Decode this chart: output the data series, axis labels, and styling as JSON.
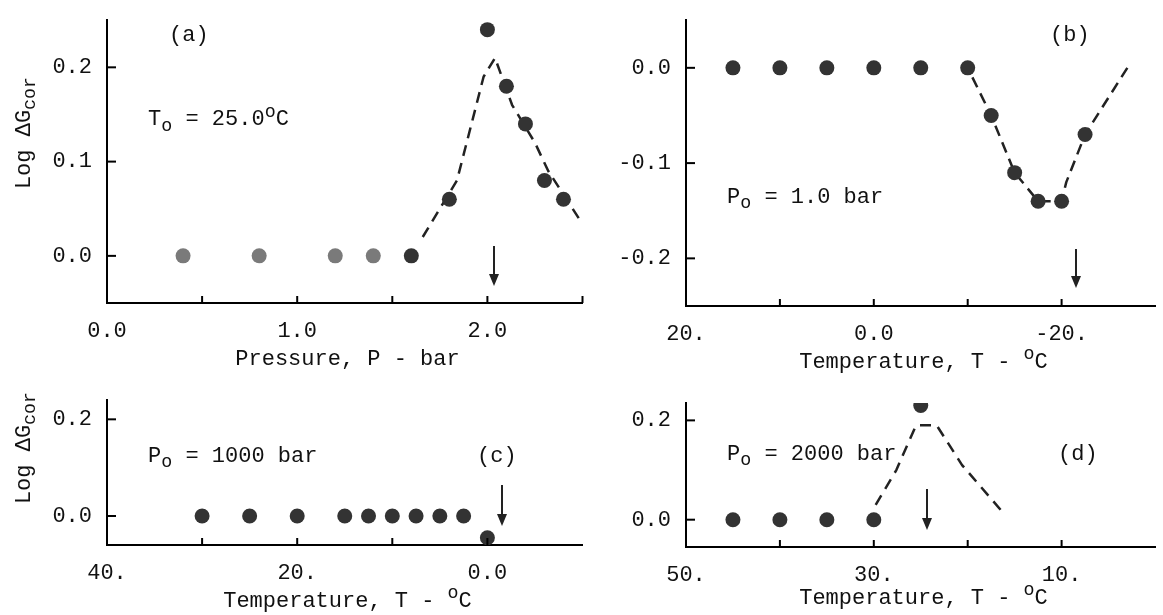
{
  "chart_data": [
    {
      "type": "scatter",
      "xlabel": "Pressure, P - bar",
      "ylabel": "Log ΔG$_{cor}$",
      "xlim": [
        0,
        2.5
      ],
      "xticks": [
        {
          "value": 0,
          "label": "0.0"
        },
        {
          "value": 0.5,
          "label": null
        },
        {
          "value": 1,
          "label": "1.0"
        },
        {
          "value": 1.5,
          "label": null
        },
        {
          "value": 2,
          "label": "2.0"
        },
        {
          "value": 2.5,
          "label": null
        }
      ],
      "ylim": [
        -0.05,
        0.25
      ],
      "yticks": [
        {
          "value": 0,
          "label": "0.0"
        },
        {
          "value": 0.1,
          "label": "0.1"
        },
        {
          "value": 0.2,
          "label": "0.2"
        }
      ],
      "annotations": [
        "(a)",
        "T$_{o}$ = 25.0$^{o}$C"
      ],
      "series": [
        {
          "marker": "circle",
          "x": [
            0.4,
            0.8,
            1.2,
            1.4,
            1.6,
            1.8,
            2.0,
            2.1,
            2.2,
            2.3,
            2.4
          ],
          "values": [
            0,
            0,
            0,
            0,
            0,
            0.06,
            0.24,
            0.18,
            0.14,
            0.08,
            0.06
          ],
          "colors": [
            "#7a7a7a",
            "#7a7a7a",
            "#7a7a7a",
            "#7a7a7a",
            "#333333",
            "#333333",
            "#333333",
            "#333333",
            "#333333",
            "#333333",
            "#333333"
          ]
        },
        {
          "type": "line",
          "marker": "none",
          "line_style": "dashed",
          "color": "#222222",
          "x": [
            1.66,
            1.84,
            1.98,
            2.04,
            2.13,
            2.25,
            2.32,
            2.48
          ],
          "values": [
            0.02,
            0.08,
            0.19,
            0.21,
            0.16,
            0.12,
            0.09,
            0.04
          ]
        }
      ]
    },
    {
      "type": "scatter",
      "xlabel": "Temperature, T - $^{o}$C",
      "xlim": [
        20,
        -30
      ],
      "xticks": [
        {
          "value": 20,
          "label": "20."
        },
        {
          "value": 10,
          "label": null
        },
        {
          "value": 0,
          "label": "0.0"
        },
        {
          "value": -10,
          "label": null
        },
        {
          "value": -20,
          "label": "-20."
        }
      ],
      "ylim": [
        -0.25,
        0.05
      ],
      "yticks": [
        {
          "value": 0,
          "label": "0.0"
        },
        {
          "value": -0.1,
          "label": "-0.1"
        },
        {
          "value": -0.2,
          "label": "-0.2"
        }
      ],
      "annotations": [
        "(b)",
        "P$_{o}$ = 1.0 bar"
      ],
      "series": [
        {
          "marker": "circle",
          "color": "#333333",
          "x": [
            15,
            10,
            5,
            0,
            -5,
            -10,
            -12.5,
            -15,
            -17.5,
            -20,
            -22.5
          ],
          "values": [
            0,
            0,
            0,
            0,
            0,
            0,
            -0.05,
            -0.11,
            -0.14,
            -0.14,
            -0.07
          ]
        },
        {
          "type": "line",
          "marker": "none",
          "line_style": "dashed",
          "color": "#222222",
          "x": [
            -10.5,
            -12.5,
            -15,
            -17.5,
            -20,
            -20.5,
            -22.5,
            -27
          ],
          "values": [
            -0.01,
            -0.05,
            -0.11,
            -0.14,
            -0.14,
            -0.12,
            -0.07,
            0
          ]
        }
      ]
    },
    {
      "type": "scatter",
      "xlabel": "Temperature, T - $^{o}$C",
      "ylabel": "Log ΔG$_{cor}$",
      "xlim": [
        40,
        -10
      ],
      "xticks": [
        {
          "value": 40,
          "label": "40."
        },
        {
          "value": 30,
          "label": null
        },
        {
          "value": 20,
          "label": "20."
        },
        {
          "value": 10,
          "label": null
        },
        {
          "value": 0,
          "label": "0.0"
        }
      ],
      "ylim": [
        -0.06,
        0.24
      ],
      "yticks": [
        {
          "value": 0,
          "label": "0.0"
        },
        {
          "value": 0.2,
          "label": "0.2"
        }
      ],
      "annotations": [
        "P$_{o}$ = 1000 bar",
        "(c)"
      ],
      "series": [
        {
          "marker": "circle",
          "color": "#333333",
          "x": [
            30,
            25,
            20,
            15,
            12.5,
            10,
            7.5,
            5,
            2.5,
            0
          ],
          "values": [
            0,
            0,
            0,
            0,
            0,
            0,
            0,
            0,
            0,
            -0.045
          ]
        }
      ]
    },
    {
      "type": "scatter",
      "xlabel": "Temperature, T - $^{o}$C",
      "xlim": [
        50,
        0
      ],
      "xticks": [
        {
          "value": 50,
          "label": "50."
        },
        {
          "value": 40,
          "label": null
        },
        {
          "value": 30,
          "label": "30."
        },
        {
          "value": 20,
          "label": null
        },
        {
          "value": 10,
          "label": "10."
        }
      ],
      "ylim": [
        -0.055,
        0.235
      ],
      "yticks": [
        {
          "value": 0,
          "label": "0.0"
        },
        {
          "value": 0.2,
          "label": "0.2"
        }
      ],
      "annotations": [
        "P$_{o}$ = 2000 bar",
        "(d)"
      ],
      "series": [
        {
          "marker": "circle",
          "color": "#333333",
          "x": [
            45,
            40,
            35,
            30,
            25
          ],
          "values": [
            0,
            0,
            0,
            0,
            0.23
          ]
        },
        {
          "type": "line",
          "marker": "none",
          "line_style": "dashed",
          "color": "#222222",
          "x": [
            29.8,
            27.6,
            25.5,
            23.3,
            20.6,
            16.5
          ],
          "values": [
            0.03,
            0.1,
            0.19,
            0.19,
            0.11,
            0.02
          ]
        }
      ]
    }
  ]
}
